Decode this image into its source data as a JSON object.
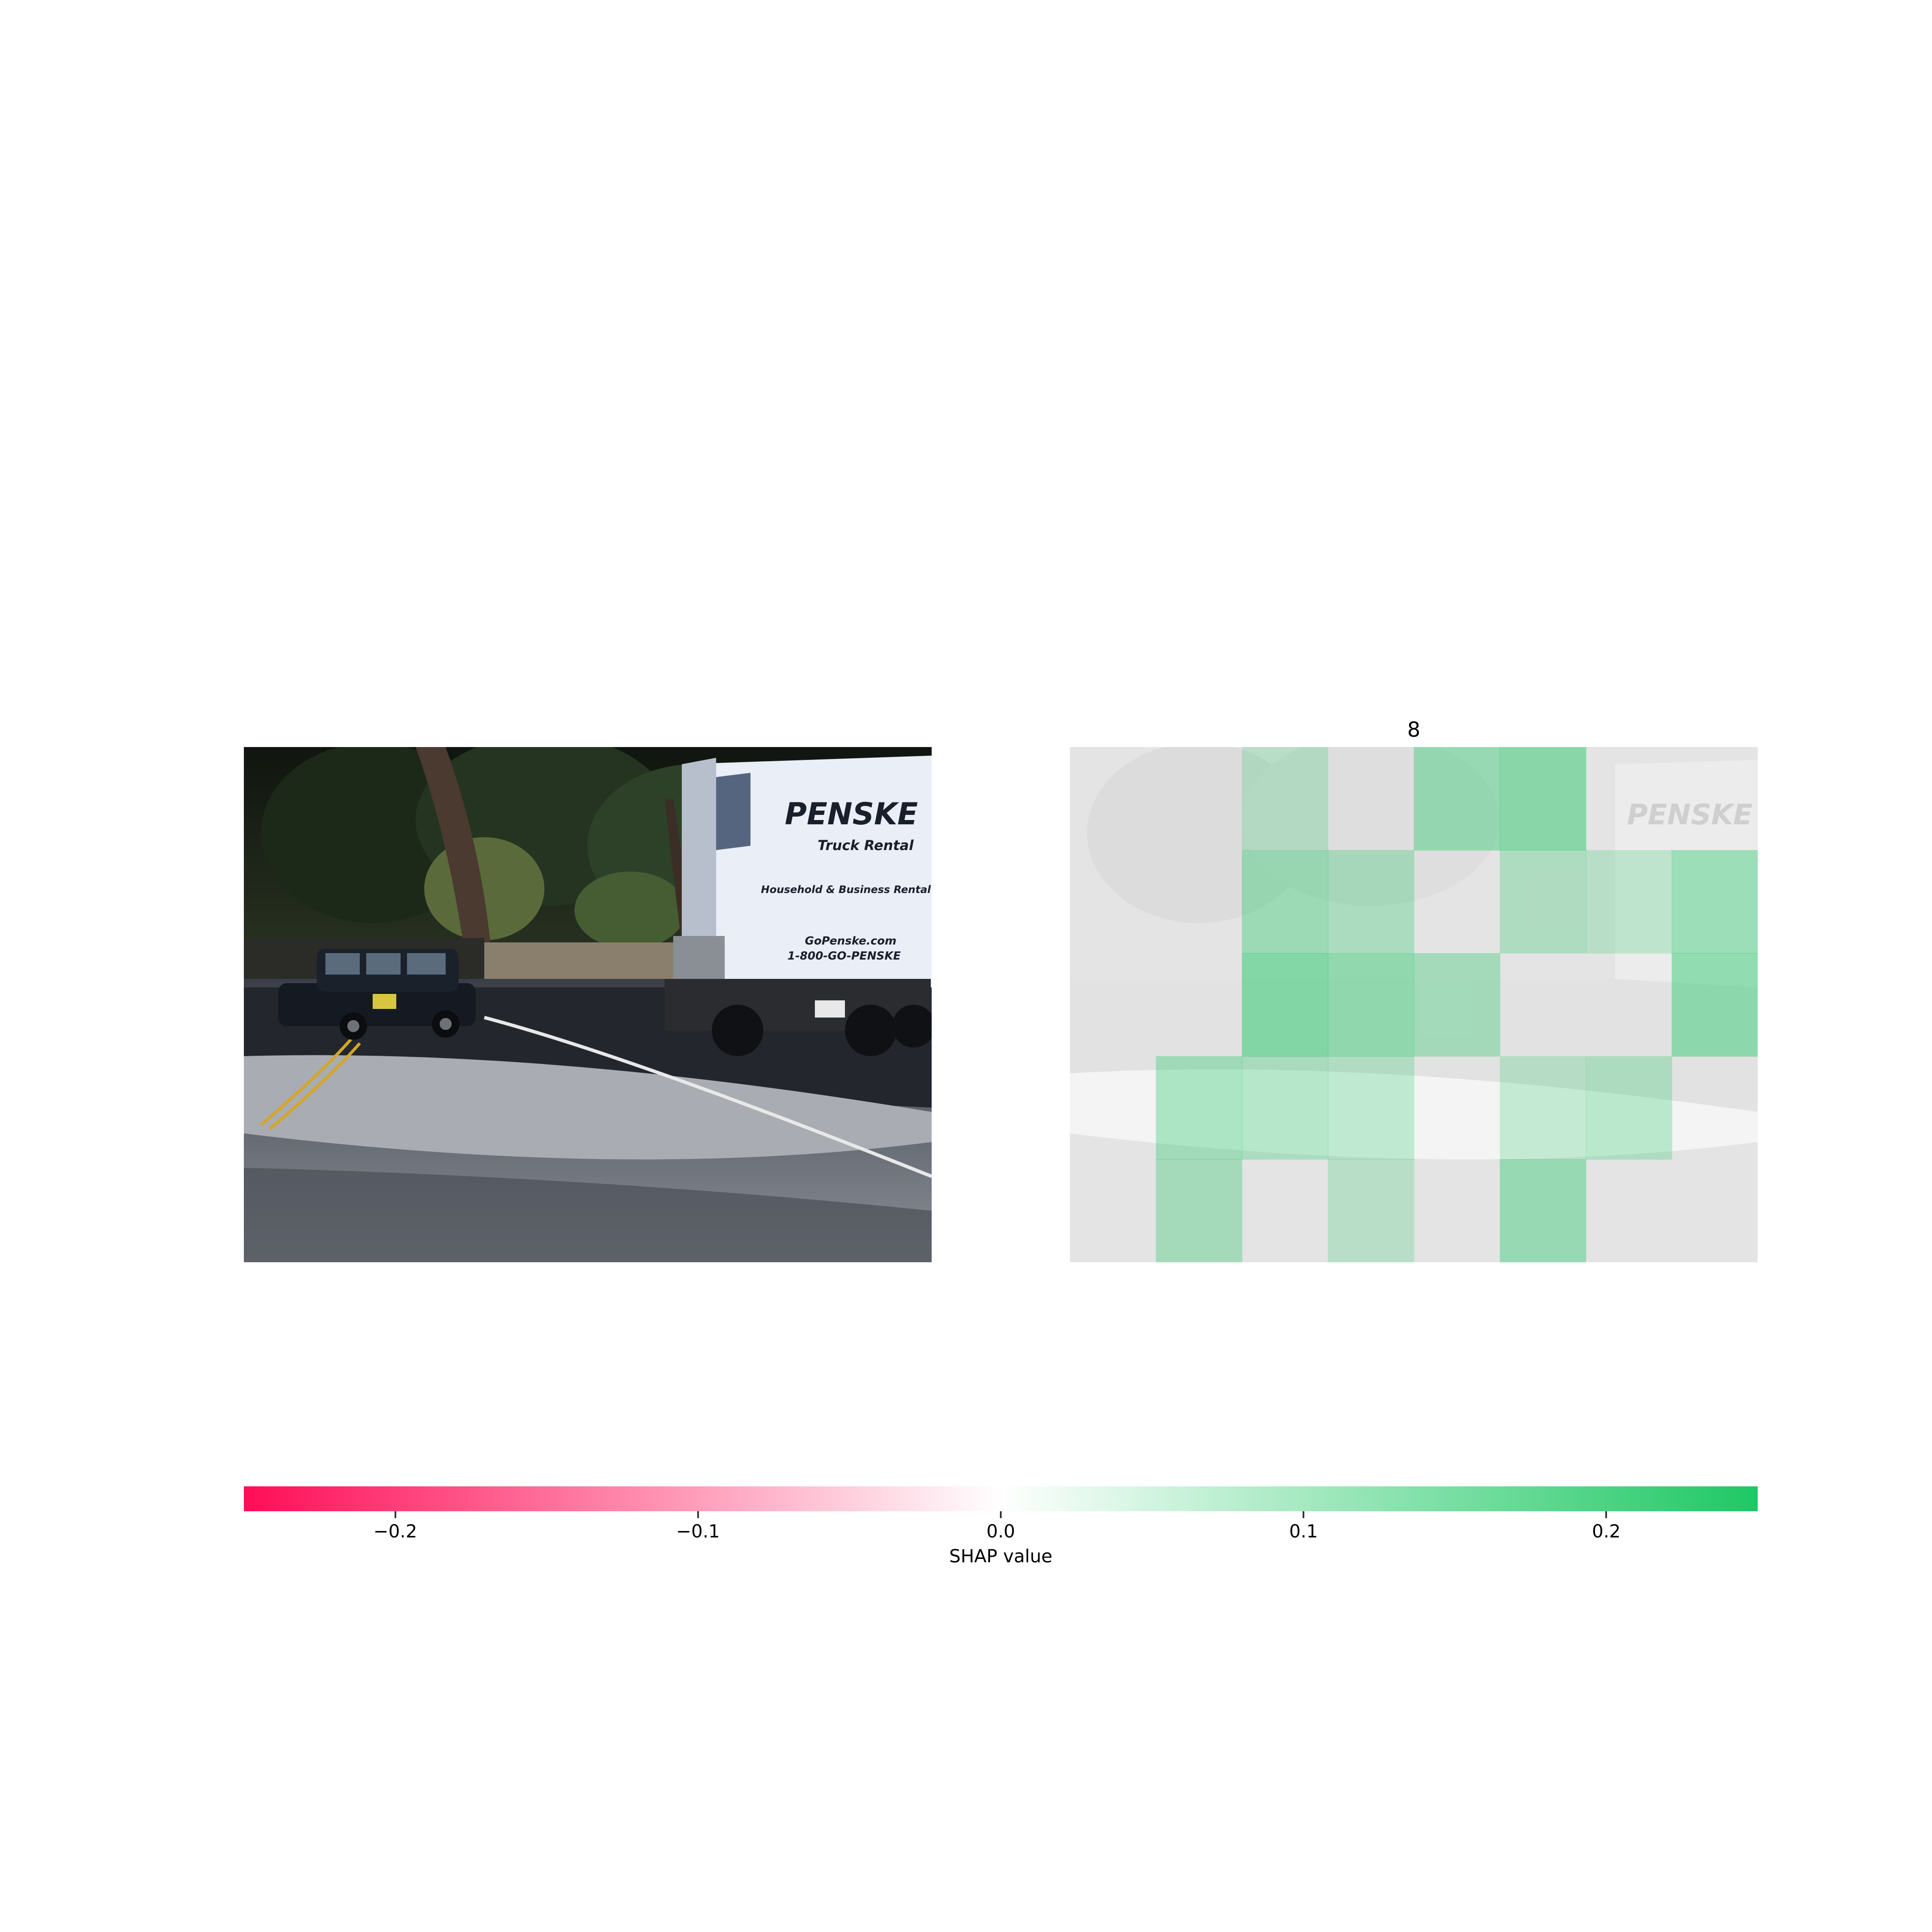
{
  "chart_data": {
    "type": "heatmap",
    "title": "8",
    "colorbar": {
      "label": "SHAP value",
      "range": [
        -0.25,
        0.25
      ],
      "ticks": [
        -0.2,
        -0.1,
        0.0,
        0.1,
        0.2
      ],
      "tick_labels": [
        "−0.2",
        "−0.1",
        "0.0",
        "0.1",
        "0.2"
      ],
      "colors": {
        "negative": "#ff0d57",
        "zero": "#ffffff",
        "positive": "#1ec864"
      }
    },
    "panels": [
      {
        "name": "input image",
        "content": "road scene with a dark boxy car and a white box truck"
      },
      {
        "name": "shap overlay",
        "segment_values_sign": "all non-negative (green)",
        "max_value_approx": 0.15
      }
    ],
    "truck_text": {
      "brand": "PENSKE",
      "line1": "Truck Rental",
      "line2": "Household & Business Rental",
      "line3": "GoPenske.com",
      "line4": "1-800-GO-PENSKE"
    },
    "segments": [
      {
        "cell": "r0c2",
        "value": 0.03
      },
      {
        "cell": "r0c4",
        "value": 0.1
      },
      {
        "cell": "r0c5",
        "value": 0.13
      },
      {
        "cell": "r1c2",
        "value": 0.09
      },
      {
        "cell": "r1c3",
        "value": 0.06
      },
      {
        "cell": "r1c5",
        "value": 0.05
      },
      {
        "cell": "r1c6",
        "value": 0.03
      },
      {
        "cell": "r1c7",
        "value": 0.1
      },
      {
        "cell": "r2c2",
        "value": 0.14
      },
      {
        "cell": "r2c3",
        "value": 0.11
      },
      {
        "cell": "r2c4",
        "value": 0.07
      },
      {
        "cell": "r2c7",
        "value": 0.12
      },
      {
        "cell": "r3c1",
        "value": 0.08
      },
      {
        "cell": "r3c2",
        "value": 0.06
      },
      {
        "cell": "r3c3",
        "value": 0.04
      },
      {
        "cell": "r3c5",
        "value": 0.03
      },
      {
        "cell": "r3c6",
        "value": 0.05
      },
      {
        "cell": "r4c1",
        "value": 0.07
      },
      {
        "cell": "r4c3",
        "value": 0.03
      },
      {
        "cell": "r4c5",
        "value": 0.1
      }
    ]
  }
}
